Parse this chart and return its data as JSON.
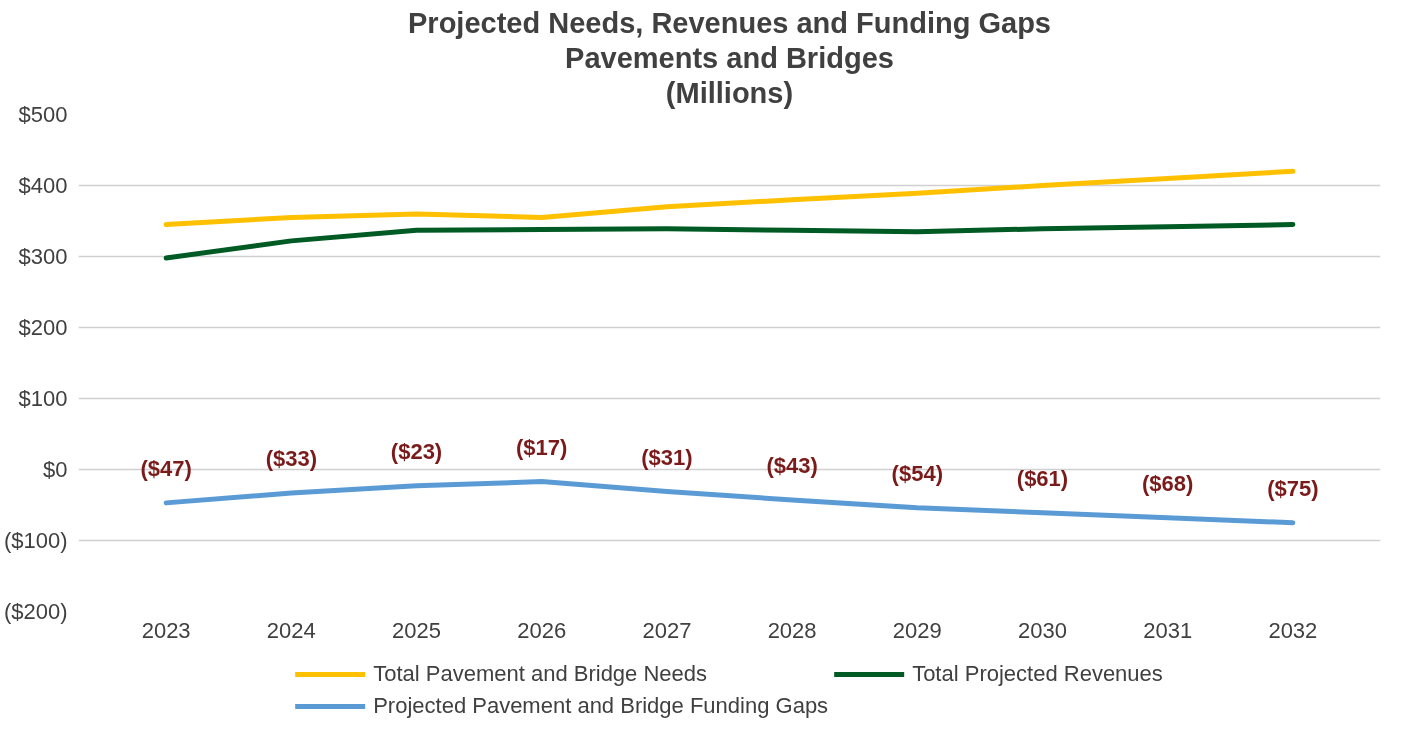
{
  "chart_data": {
    "type": "line",
    "title": "Projected Needs, Revenues and Funding Gaps\nPavements and Bridges\n(Millions)",
    "categories": [
      "2023",
      "2024",
      "2025",
      "2026",
      "2027",
      "2028",
      "2029",
      "2030",
      "2031",
      "2032"
    ],
    "series": [
      {
        "name": "Total Pavement and Bridge Needs",
        "color": "#ffc000",
        "values": [
          345,
          355,
          360,
          355,
          370,
          380,
          389,
          400,
          410,
          420
        ]
      },
      {
        "name": "Total Projected Revenues",
        "color": "#005a24",
        "values": [
          298,
          322,
          337,
          338,
          339,
          337,
          335,
          339,
          342,
          345
        ]
      },
      {
        "name": "Projected Pavement and Bridge Funding Gaps",
        "color": "#5b9bd5",
        "values": [
          -47,
          -33,
          -23,
          -17,
          -31,
          -43,
          -54,
          -61,
          -68,
          -75
        ],
        "value_labels": [
          "($47)",
          "($33)",
          "($23)",
          "($17)",
          "($31)",
          "($43)",
          "($54)",
          "($61)",
          "($68)",
          "($75)"
        ]
      }
    ],
    "ylim": [
      -200,
      500
    ],
    "yticks": [
      {
        "value": -200,
        "label": "($200)"
      },
      {
        "value": -100,
        "label": "($100)"
      },
      {
        "value": 0,
        "label": "$0"
      },
      {
        "value": 100,
        "label": "$100"
      },
      {
        "value": 200,
        "label": "$200"
      },
      {
        "value": 300,
        "label": "$300"
      },
      {
        "value": 400,
        "label": "$400"
      },
      {
        "value": 500,
        "label": "$500"
      }
    ],
    "grid": "y",
    "legend": "bottom",
    "marker": "none",
    "line_style": "solid"
  }
}
